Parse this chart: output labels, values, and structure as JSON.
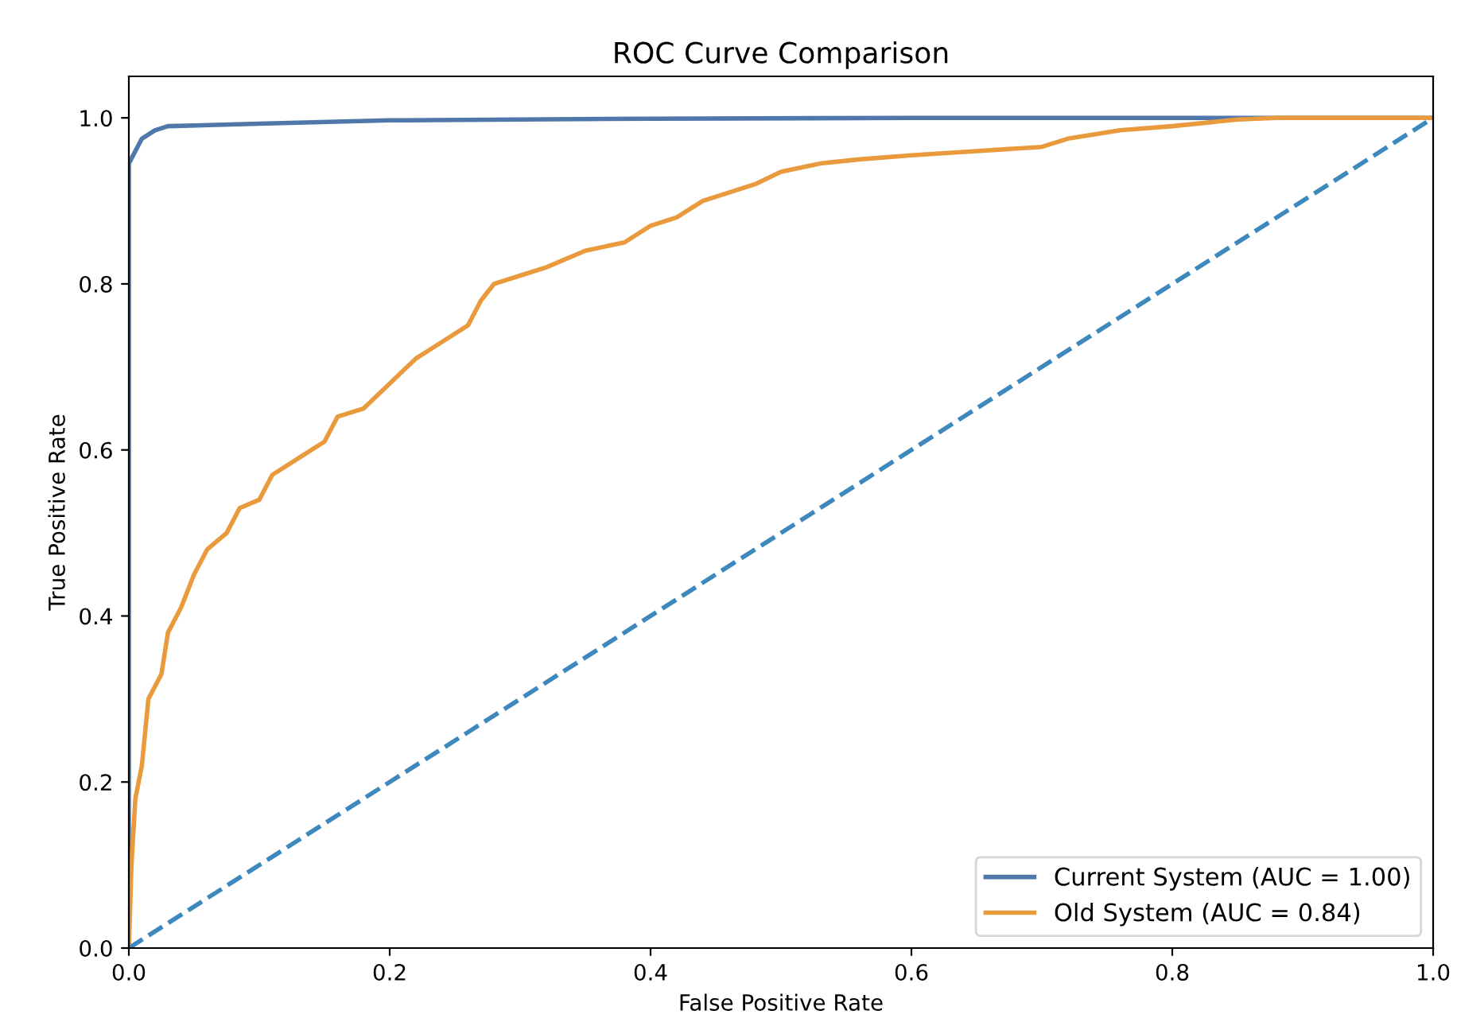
{
  "chart_data": {
    "type": "line",
    "title": "ROC Curve Comparison",
    "xlabel": "False Positive Rate",
    "ylabel": "True Positive Rate",
    "xlim": [
      0.0,
      1.0
    ],
    "ylim": [
      0.0,
      1.05
    ],
    "xticks": [
      {
        "value": 0,
        "label": "0.0"
      },
      0.2,
      0.4,
      0.6,
      0.8,
      {
        "value": 1,
        "label": "1.0"
      }
    ],
    "yticks": [
      {
        "value": 0,
        "label": "0.0"
      },
      0.2,
      0.4,
      0.6,
      0.8,
      {
        "value": 1,
        "label": "1.0"
      }
    ],
    "grid": false,
    "legend": "bottom right",
    "series": [
      {
        "name": "Current System (AUC = 1.00)",
        "color": "#4f77aa",
        "line_style": "solid",
        "x": [
          0,
          0,
          0.005,
          0.01,
          0.02,
          0.03,
          0.1,
          0.2,
          0.4,
          0.6,
          1.0
        ],
        "values": [
          0,
          0.945,
          0.96,
          0.975,
          0.985,
          0.99,
          0.993,
          0.997,
          0.999,
          1.0,
          1.0
        ]
      },
      {
        "name": "Old System (AUC = 0.84)",
        "color": "#e89a3c",
        "line_style": "solid",
        "x": [
          0,
          0.002,
          0.005,
          0.01,
          0.015,
          0.025,
          0.03,
          0.04,
          0.05,
          0.06,
          0.075,
          0.085,
          0.1,
          0.11,
          0.13,
          0.15,
          0.16,
          0.18,
          0.2,
          0.22,
          0.24,
          0.26,
          0.27,
          0.28,
          0.3,
          0.32,
          0.35,
          0.38,
          0.4,
          0.42,
          0.44,
          0.46,
          0.48,
          0.5,
          0.53,
          0.56,
          0.6,
          0.65,
          0.7,
          0.72,
          0.76,
          0.8,
          0.85,
          0.88,
          1.0
        ],
        "values": [
          0,
          0.1,
          0.18,
          0.22,
          0.3,
          0.33,
          0.38,
          0.41,
          0.45,
          0.48,
          0.5,
          0.53,
          0.54,
          0.57,
          0.59,
          0.61,
          0.64,
          0.65,
          0.68,
          0.71,
          0.73,
          0.75,
          0.78,
          0.8,
          0.81,
          0.82,
          0.84,
          0.85,
          0.87,
          0.88,
          0.9,
          0.91,
          0.92,
          0.935,
          0.945,
          0.95,
          0.955,
          0.96,
          0.965,
          0.975,
          0.985,
          0.99,
          0.998,
          1.0,
          1.0
        ]
      },
      {
        "color": "#3d88bd",
        "line_style": "dashed",
        "x": [
          0,
          1
        ],
        "values": [
          0,
          1
        ]
      }
    ]
  }
}
